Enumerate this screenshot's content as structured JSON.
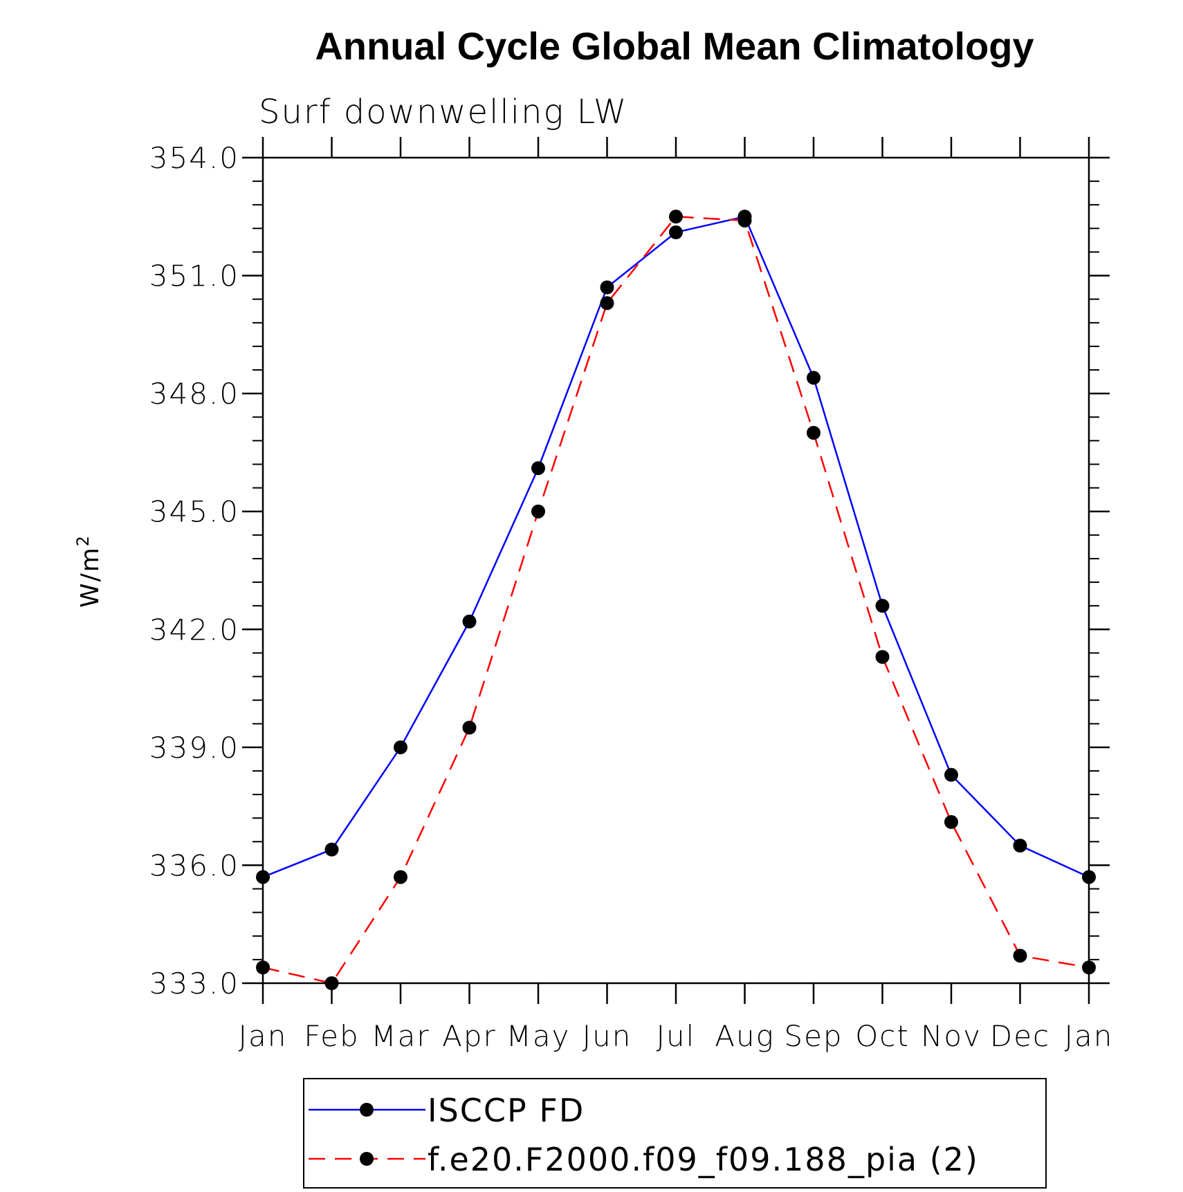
{
  "chart_data": {
    "type": "line",
    "title": "Annual Cycle Global Mean Climatology",
    "subtitle": "Surf downwelling LW",
    "xlabel": "",
    "ylabel": "W/m",
    "ylabel_superscript": "2",
    "ylim": [
      333.0,
      354.0
    ],
    "yticks": [
      "333.0",
      "336.0",
      "339.0",
      "342.0",
      "345.0",
      "348.0",
      "351.0",
      "354.0"
    ],
    "categories": [
      "Jan",
      "Feb",
      "Mar",
      "Apr",
      "May",
      "Jun",
      "Jul",
      "Aug",
      "Sep",
      "Oct",
      "Nov",
      "Dec",
      "Jan"
    ],
    "series": [
      {
        "name": "ISCCP FD",
        "color": "#0000ff",
        "dash": "solid",
        "values": [
          335.7,
          336.4,
          339.0,
          342.2,
          346.1,
          350.7,
          352.1,
          352.5,
          348.4,
          342.6,
          338.3,
          336.5,
          335.7
        ]
      },
      {
        "name": "f.e20.F2000.f09_f09.188_pia (2)",
        "color": "#ff0000",
        "dash": "dashed",
        "values": [
          333.4,
          333.0,
          335.7,
          339.5,
          345.0,
          350.3,
          352.5,
          352.4,
          347.0,
          341.3,
          337.1,
          333.7,
          333.4
        ]
      }
    ],
    "legend_position": "bottom"
  }
}
